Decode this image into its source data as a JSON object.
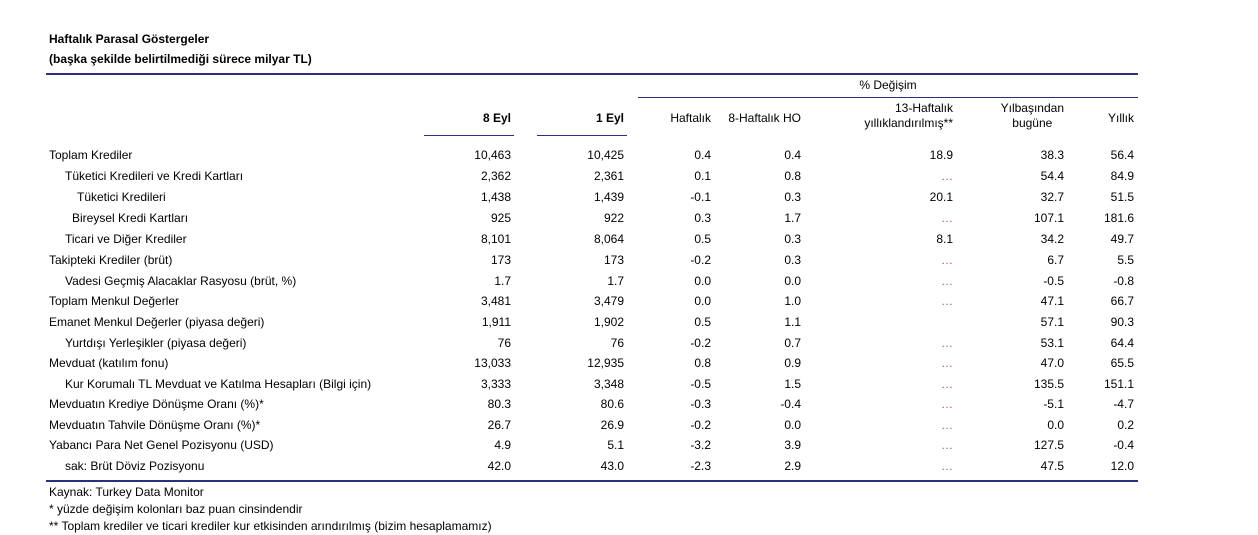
{
  "title": "Haftalık Parasal Göstergeler",
  "subtitle": "(başka şekilde belirtilmediği sürece milyar TL)",
  "headers": {
    "pct_change": "% Değişim",
    "col1": "8 Eyl",
    "col2": "1 Eyl",
    "col3": "Haftalık",
    "col4": "8-Haftalık HO",
    "col5_line1": "13-Haftalık",
    "col5_line2": "yıllıklandırılmış**",
    "col6_line1": "Yılbaşından",
    "col6_line2": "bugüne",
    "col7": "Yıllık"
  },
  "rows": [
    {
      "label": "Toplam Krediler",
      "v": [
        "10,463",
        "10,425",
        "0.4",
        "0.4",
        "18.9",
        "38.3",
        "56.4"
      ]
    },
    {
      "label": "Tüketici Kredileri ve Kredi Kartları",
      "v": [
        "2,362",
        "2,361",
        "0.1",
        "0.8",
        "…",
        "54.4",
        "84.9"
      ]
    },
    {
      "label": "Tüketici Kredileri",
      "v": [
        "1,438",
        "1,439",
        "-0.1",
        "0.3",
        "20.1",
        "32.7",
        "51.5"
      ]
    },
    {
      "label": "Bireysel Kredi Kartları",
      "v": [
        "925",
        "922",
        "0.3",
        "1.7",
        "…",
        "107.1",
        "181.6"
      ]
    },
    {
      "label": "Ticari ve Diğer Krediler",
      "v": [
        "8,101",
        "8,064",
        "0.5",
        "0.3",
        "8.1",
        "34.2",
        "49.7"
      ]
    },
    {
      "label": "Takipteki Krediler (brüt)",
      "v": [
        "173",
        "173",
        "-0.2",
        "0.3",
        "…",
        "6.7",
        "5.5"
      ]
    },
    {
      "label": "Vadesi Geçmiş Alacaklar Rasyosu (brüt, %)",
      "v": [
        "1.7",
        "1.7",
        "0.0",
        "0.0",
        "…",
        "-0.5",
        "-0.8"
      ]
    },
    {
      "label": "Toplam Menkul Değerler",
      "v": [
        "3,481",
        "3,479",
        "0.0",
        "1.0",
        "…",
        "47.1",
        "66.7"
      ]
    },
    {
      "label": "Emanet Menkul Değerler (piyasa değeri)",
      "v": [
        "1,911",
        "1,902",
        "0.5",
        "1.1",
        "",
        "57.1",
        "90.3"
      ]
    },
    {
      "label": "Yurtdışı Yerleşikler (piyasa değeri)",
      "v": [
        "76",
        "76",
        "-0.2",
        "0.7",
        "…",
        "53.1",
        "64.4"
      ]
    },
    {
      "label": "Mevduat (katılım fonu)",
      "v": [
        "13,033",
        "12,935",
        "0.8",
        "0.9",
        "…",
        "47.0",
        "65.5"
      ]
    },
    {
      "label": "Kur Korumalı TL Mevduat ve Katılma Hesapları (Bilgi için)",
      "v": [
        "3,333",
        "3,348",
        "-0.5",
        "1.5",
        "…",
        "135.5",
        "151.1"
      ]
    },
    {
      "label": "Mevduatın Krediye Dönüşme Oranı (%)*",
      "v": [
        "80.3",
        "80.6",
        "-0.3",
        "-0.4",
        "…",
        "-5.1",
        "-4.7"
      ]
    },
    {
      "label": "Mevduatın Tahvile Dönüşme Oranı (%)*",
      "v": [
        "26.7",
        "26.9",
        "-0.2",
        "0.0",
        "…",
        "0.0",
        "0.2"
      ]
    },
    {
      "label": "Yabancı Para Net Genel Pozisyonu (USD)",
      "v": [
        "4.9",
        "5.1",
        "-3.2",
        "3.9",
        "…",
        "127.5",
        "-0.4"
      ]
    },
    {
      "label": "sak: Brüt Döviz Pozisyonu",
      "v": [
        "42.0",
        "43.0",
        "-2.3",
        "2.9",
        "…",
        "47.5",
        "12.0"
      ]
    }
  ],
  "notes": [
    "Kaynak: Turkey Data Monitor",
    "* yüzde değişim kolonları baz puan cinsindendir",
    "** Toplam krediler ve ticari krediler kur etkisinden arındırılmış (bizim hesaplamamız)"
  ],
  "colors": {
    "rule": "#2b2f7d",
    "ellipsis": "#c0504d"
  }
}
